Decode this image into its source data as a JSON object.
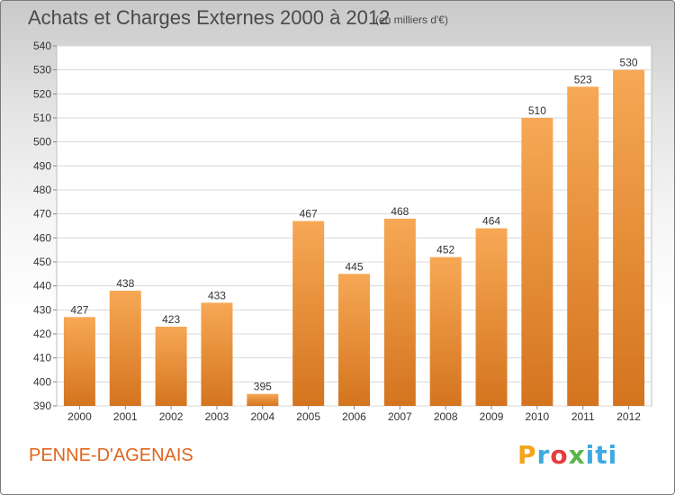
{
  "header": {
    "title": "Achats et Charges Externes 2000 à 2012",
    "subtitle": "(en milliers d'€)"
  },
  "footer": {
    "commune": "PENNE-D'AGENAIS",
    "logo_text": "Proxiti"
  },
  "colors": {
    "bar_light": "#f7a855",
    "bar_dark": "#d4741f",
    "commune_text": "#e0641c"
  },
  "chart_data": {
    "type": "bar",
    "categories": [
      "2000",
      "2001",
      "2002",
      "2003",
      "2004",
      "2005",
      "2006",
      "2007",
      "2008",
      "2009",
      "2010",
      "2011",
      "2012"
    ],
    "values": [
      427,
      438,
      423,
      433,
      395,
      467,
      445,
      468,
      452,
      464,
      510,
      523,
      530
    ],
    "ylim": [
      390,
      540
    ],
    "yticks": [
      390,
      400,
      410,
      420,
      430,
      440,
      450,
      460,
      470,
      480,
      490,
      500,
      510,
      520,
      530,
      540
    ],
    "grid": true
  }
}
